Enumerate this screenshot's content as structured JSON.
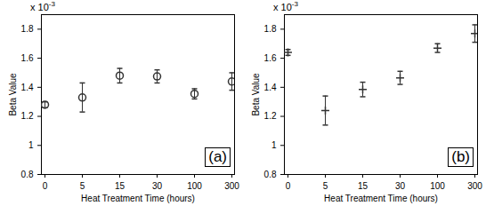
{
  "chart_data": [
    {
      "type": "scatter",
      "x_label": "Heat Treatment Time (hours)",
      "y_label": "Beta Value",
      "categories": [
        "0",
        "5",
        "15",
        "30",
        "100",
        "300"
      ],
      "values": [
        1.28,
        1.33,
        1.48,
        1.475,
        1.355,
        1.44
      ],
      "errors": [
        0.02,
        0.1,
        0.05,
        0.045,
        0.035,
        0.06
      ],
      "ylim": [
        0.8,
        1.9
      ],
      "yticks": [
        0.8,
        1,
        1.2,
        1.4,
        1.6,
        1.8
      ],
      "marker": "circle",
      "color": "#333333",
      "annotations": [
        {
          "text": "x 10",
          "superscript": "-3"
        },
        {
          "text": "(a)"
        }
      ]
    },
    {
      "type": "scatter",
      "x_label": "Heat Treatment Time (hours)",
      "y_label": "Beta Value",
      "categories": [
        "0",
        "5",
        "15",
        "30",
        "100",
        "300"
      ],
      "values": [
        1.64,
        1.24,
        1.385,
        1.465,
        1.67,
        1.77
      ],
      "errors": [
        0.02,
        0.1,
        0.05,
        0.045,
        0.03,
        0.06
      ],
      "ylim": [
        0.8,
        1.9
      ],
      "yticks": [
        0.8,
        1,
        1.2,
        1.4,
        1.6,
        1.8
      ],
      "marker": "plus",
      "color": "#333333",
      "annotations": [
        {
          "text": "x 10",
          "superscript": "-3"
        },
        {
          "text": "(b)"
        }
      ]
    }
  ]
}
